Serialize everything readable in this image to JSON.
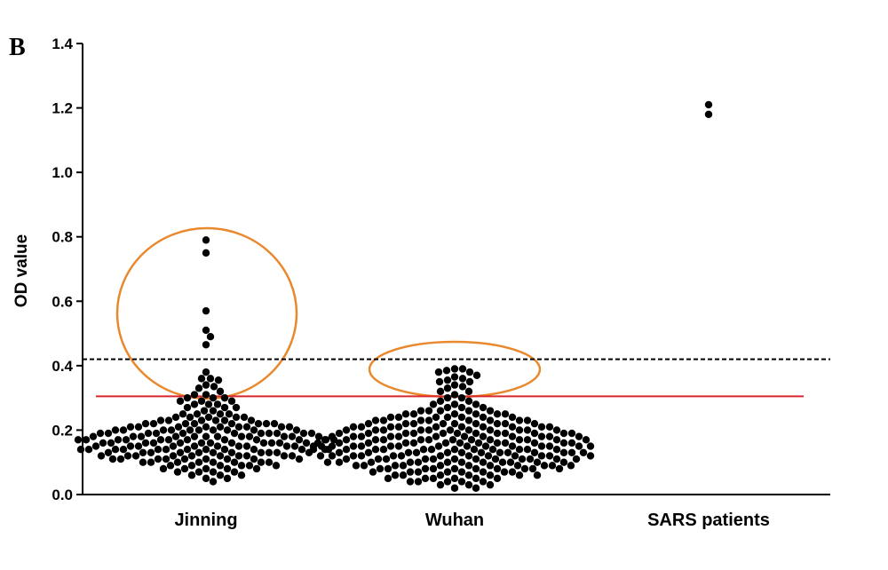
{
  "chart_data": {
    "type": "dot",
    "panel_label": "B",
    "ylabel": "OD value",
    "categories": [
      "Jinning",
      "Wuhan",
      "SARS patients"
    ],
    "groups": [
      [
        0.79,
        0.75,
        0.57,
        0.51,
        0.49,
        0.465,
        0.38,
        0.36,
        0.36,
        0.355,
        0.34,
        0.335,
        0.33,
        0.32,
        0.31,
        0.31,
        0.3,
        0.3,
        0.3,
        0.29,
        0.29,
        0.29,
        0.28,
        0.28,
        0.28,
        0.27,
        0.27,
        0.27,
        0.26,
        0.26,
        0.25,
        0.25,
        0.25,
        0.25,
        0.24,
        0.24,
        0.24,
        0.24,
        0.24,
        0.23,
        0.23,
        0.23,
        0.23,
        0.23,
        0.23,
        0.22,
        0.22,
        0.22,
        0.22,
        0.22,
        0.22,
        0.22,
        0.22,
        0.21,
        0.21,
        0.21,
        0.21,
        0.21,
        0.21,
        0.21,
        0.21,
        0.21,
        0.2,
        0.2,
        0.2,
        0.2,
        0.2,
        0.2,
        0.2,
        0.2,
        0.2,
        0.2,
        0.19,
        0.19,
        0.19,
        0.19,
        0.19,
        0.19,
        0.19,
        0.19,
        0.19,
        0.19,
        0.19,
        0.18,
        0.18,
        0.18,
        0.18,
        0.18,
        0.18,
        0.18,
        0.18,
        0.18,
        0.18,
        0.18,
        0.18,
        0.17,
        0.17,
        0.17,
        0.17,
        0.17,
        0.17,
        0.17,
        0.17,
        0.17,
        0.17,
        0.17,
        0.17,
        0.16,
        0.16,
        0.16,
        0.16,
        0.16,
        0.16,
        0.16,
        0.16,
        0.16,
        0.16,
        0.16,
        0.16,
        0.15,
        0.15,
        0.15,
        0.15,
        0.15,
        0.15,
        0.15,
        0.15,
        0.15,
        0.15,
        0.15,
        0.15,
        0.14,
        0.14,
        0.14,
        0.14,
        0.14,
        0.14,
        0.14,
        0.14,
        0.14,
        0.14,
        0.14,
        0.14,
        0.13,
        0.13,
        0.13,
        0.13,
        0.13,
        0.13,
        0.13,
        0.13,
        0.13,
        0.13,
        0.13,
        0.12,
        0.12,
        0.12,
        0.12,
        0.12,
        0.12,
        0.12,
        0.12,
        0.12,
        0.12,
        0.11,
        0.11,
        0.11,
        0.11,
        0.11,
        0.11,
        0.11,
        0.11,
        0.11,
        0.1,
        0.1,
        0.1,
        0.1,
        0.1,
        0.1,
        0.1,
        0.1,
        0.09,
        0.09,
        0.09,
        0.09,
        0.09,
        0.09,
        0.08,
        0.08,
        0.08,
        0.08,
        0.08,
        0.07,
        0.07,
        0.07,
        0.07,
        0.06,
        0.06,
        0.06,
        0.05,
        0.05,
        0.04
      ],
      [
        0.39,
        0.39,
        0.385,
        0.38,
        0.38,
        0.37,
        0.365,
        0.36,
        0.355,
        0.35,
        0.35,
        0.34,
        0.335,
        0.33,
        0.32,
        0.32,
        0.31,
        0.3,
        0.3,
        0.29,
        0.29,
        0.28,
        0.28,
        0.28,
        0.27,
        0.27,
        0.27,
        0.26,
        0.26,
        0.26,
        0.26,
        0.26,
        0.25,
        0.25,
        0.25,
        0.25,
        0.25,
        0.25,
        0.24,
        0.24,
        0.24,
        0.24,
        0.24,
        0.24,
        0.24,
        0.23,
        0.23,
        0.23,
        0.23,
        0.23,
        0.23,
        0.23,
        0.23,
        0.22,
        0.22,
        0.22,
        0.22,
        0.22,
        0.22,
        0.22,
        0.22,
        0.22,
        0.21,
        0.21,
        0.21,
        0.21,
        0.21,
        0.21,
        0.21,
        0.21,
        0.21,
        0.21,
        0.2,
        0.2,
        0.2,
        0.2,
        0.2,
        0.2,
        0.2,
        0.2,
        0.2,
        0.2,
        0.2,
        0.19,
        0.19,
        0.19,
        0.19,
        0.19,
        0.19,
        0.19,
        0.19,
        0.19,
        0.19,
        0.19,
        0.19,
        0.18,
        0.18,
        0.18,
        0.18,
        0.18,
        0.18,
        0.18,
        0.18,
        0.18,
        0.18,
        0.18,
        0.18,
        0.17,
        0.17,
        0.17,
        0.17,
        0.17,
        0.17,
        0.17,
        0.17,
        0.17,
        0.17,
        0.17,
        0.17,
        0.17,
        0.16,
        0.16,
        0.16,
        0.16,
        0.16,
        0.16,
        0.16,
        0.16,
        0.16,
        0.16,
        0.16,
        0.16,
        0.16,
        0.15,
        0.15,
        0.15,
        0.15,
        0.15,
        0.15,
        0.15,
        0.15,
        0.15,
        0.15,
        0.15,
        0.15,
        0.15,
        0.14,
        0.14,
        0.14,
        0.14,
        0.14,
        0.14,
        0.14,
        0.14,
        0.14,
        0.14,
        0.14,
        0.14,
        0.14,
        0.13,
        0.13,
        0.13,
        0.13,
        0.13,
        0.13,
        0.13,
        0.13,
        0.13,
        0.13,
        0.13,
        0.13,
        0.13,
        0.12,
        0.12,
        0.12,
        0.12,
        0.12,
        0.12,
        0.12,
        0.12,
        0.12,
        0.12,
        0.12,
        0.12,
        0.12,
        0.11,
        0.11,
        0.11,
        0.11,
        0.11,
        0.11,
        0.11,
        0.11,
        0.11,
        0.11,
        0.11,
        0.11,
        0.1,
        0.1,
        0.1,
        0.1,
        0.1,
        0.1,
        0.1,
        0.1,
        0.1,
        0.1,
        0.1,
        0.1,
        0.09,
        0.09,
        0.09,
        0.09,
        0.09,
        0.09,
        0.09,
        0.09,
        0.09,
        0.09,
        0.09,
        0.08,
        0.08,
        0.08,
        0.08,
        0.08,
        0.08,
        0.08,
        0.08,
        0.08,
        0.08,
        0.07,
        0.07,
        0.07,
        0.07,
        0.07,
        0.07,
        0.07,
        0.07,
        0.06,
        0.06,
        0.06,
        0.06,
        0.06,
        0.06,
        0.06,
        0.05,
        0.05,
        0.05,
        0.05,
        0.05,
        0.05,
        0.04,
        0.04,
        0.04,
        0.04,
        0.04,
        0.03,
        0.03,
        0.03,
        0.02,
        0.02
      ],
      [
        1.18,
        1.21
      ]
    ],
    "color": "#000000",
    "ylim": [
      0,
      1.4
    ],
    "yticks": [
      {
        "value": 0,
        "label": "0.0"
      },
      0.2,
      0.4,
      0.6,
      0.8,
      {
        "value": 1,
        "label": "1.0"
      },
      1.2,
      1.4
    ],
    "reference_lines": [
      {
        "value": 0.42,
        "style": "dashed",
        "color": "#000000"
      },
      {
        "value": 0.305,
        "style": "solid",
        "color": "#d9262b"
      }
    ]
  }
}
